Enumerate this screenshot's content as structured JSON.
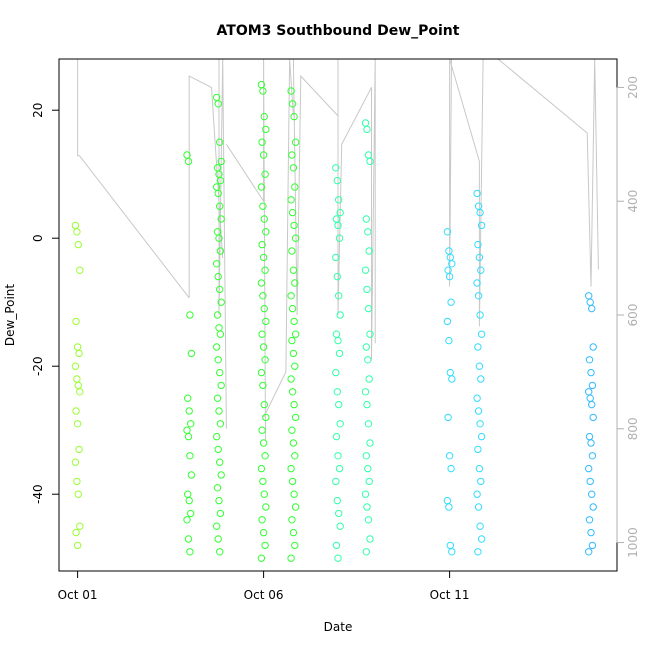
{
  "chart_data": {
    "type": "scatter",
    "title": "ATOM3 Southbound Dew_Point",
    "xlabel": "Date",
    "ylabel": "Dew_Point",
    "x_ticks": [
      "Oct 01",
      "Oct 06",
      "Oct 11"
    ],
    "x_tick_days": [
      1,
      6,
      11
    ],
    "xlim": [
      0.5,
      15.5
    ],
    "ylim": [
      -52,
      28
    ],
    "y_ticks": [
      -40,
      -20,
      0,
      20
    ],
    "y2_ticks": [
      200,
      400,
      600,
      800,
      1000
    ],
    "y2lim": [
      1050,
      150
    ],
    "grid": false,
    "legend": "none",
    "colors": {
      "early": "#99ff33",
      "mid": "#33ff33",
      "late": "#33ffcc",
      "latest": "#33ccff",
      "pressure_line": "#c8c8c8",
      "right_axis": "#b0b0b0"
    },
    "groups": [
      {
        "day": 1.0,
        "color": "#99ff33",
        "y": [
          2,
          1,
          -1,
          -5,
          -13,
          -17,
          -18,
          -20,
          -22,
          -23,
          -24,
          -27,
          -29,
          -33,
          -35,
          -38,
          -40,
          -45,
          -46,
          -48
        ]
      },
      {
        "day": 4.0,
        "color": "#33ff33",
        "y": [
          13,
          12,
          -12,
          -18,
          -25,
          -27,
          -29,
          -30,
          -31,
          -34,
          -37,
          -40,
          -41,
          -43,
          -44,
          -47,
          -49
        ]
      },
      {
        "day": 4.8,
        "color": "#33ff33",
        "y": [
          22,
          21,
          15,
          12,
          11,
          10,
          9,
          8,
          7,
          5,
          3,
          1,
          0,
          -2,
          -4,
          -6,
          -8,
          -10,
          -12,
          -14,
          -15,
          -17,
          -19,
          -21,
          -23,
          -25,
          -27,
          -29,
          -31,
          -33,
          -35,
          -37,
          -39,
          -41,
          -43,
          -45,
          -47,
          -49
        ]
      },
      {
        "day": 6.0,
        "color": "#33ff33",
        "y": [
          24,
          23,
          19,
          17,
          15,
          13,
          10,
          8,
          5,
          3,
          1,
          -1,
          -3,
          -5,
          -7,
          -9,
          -11,
          -13,
          -15,
          -17,
          -19,
          -21,
          -23,
          -26,
          -28,
          -30,
          -32,
          -34,
          -36,
          -38,
          -40,
          -42,
          -44,
          -46,
          -48,
          -50
        ]
      },
      {
        "day": 6.8,
        "color": "#33ff33",
        "y": [
          23,
          21,
          19,
          15,
          13,
          11,
          8,
          6,
          4,
          2,
          0,
          -2,
          -5,
          -7,
          -9,
          -11,
          -13,
          -15,
          -16,
          -18,
          -20,
          -22,
          -24,
          -26,
          -28,
          -30,
          -32,
          -34,
          -36,
          -38,
          -40,
          -42,
          -44,
          -46,
          -48,
          -50
        ]
      },
      {
        "day": 8.0,
        "color": "#33ffaa",
        "y": [
          11,
          9,
          6,
          4,
          3,
          2,
          0,
          -3,
          -6,
          -9,
          -12,
          -15,
          -16,
          -18,
          -21,
          -24,
          -26,
          -29,
          -31,
          -34,
          -36,
          -38,
          -41,
          -43,
          -45,
          -48,
          -50
        ]
      },
      {
        "day": 8.8,
        "color": "#33ffaa",
        "y": [
          18,
          17,
          13,
          12,
          3,
          1,
          -2,
          -5,
          -8,
          -11,
          -15,
          -17,
          -19,
          -22,
          -24,
          -26,
          -29,
          -32,
          -34,
          -36,
          -38,
          -40,
          -42,
          -44,
          -47,
          -49
        ]
      },
      {
        "day": 11.0,
        "color": "#33ddff",
        "y": [
          1,
          -2,
          -3,
          -4,
          -5,
          -6,
          -10,
          -13,
          -16,
          -21,
          -22,
          -28,
          -34,
          -36,
          -41,
          -42,
          -48,
          -49
        ]
      },
      {
        "day": 11.8,
        "color": "#33ddff",
        "y": [
          7,
          5,
          4,
          2,
          -1,
          -3,
          -5,
          -7,
          -9,
          -12,
          -15,
          -17,
          -20,
          -22,
          -25,
          -27,
          -29,
          -31,
          -33,
          -36,
          -38,
          -40,
          -42,
          -45,
          -47,
          -49
        ]
      },
      {
        "day": 14.8,
        "color": "#33bbff",
        "y": [
          -9,
          -10,
          -11,
          -17,
          -19,
          -21,
          -23,
          -24,
          -25,
          -26,
          -28,
          -31,
          -32,
          -34,
          -36,
          -38,
          -40,
          -42,
          -44,
          -46,
          -48,
          -49
        ]
      }
    ],
    "pressure_segments": [
      [
        [
          1.0,
          150
        ],
        [
          1.0,
          320
        ],
        [
          1.05,
          320
        ],
        [
          4.0,
          570
        ]
      ],
      [
        [
          4.0,
          570
        ],
        [
          4.0,
          180
        ],
        [
          4.6,
          200
        ],
        [
          4.9,
          500
        ]
      ],
      [
        [
          4.8,
          150
        ],
        [
          4.8,
          600
        ],
        [
          4.9,
          150
        ],
        [
          5.0,
          800
        ]
      ],
      [
        [
          5.0,
          300
        ],
        [
          6.0,
          400
        ],
        [
          6.0,
          150
        ],
        [
          6.05,
          820
        ]
      ],
      [
        [
          6.0,
          780
        ],
        [
          6.6,
          700
        ],
        [
          6.7,
          150
        ],
        [
          6.8,
          250
        ]
      ],
      [
        [
          6.8,
          150
        ],
        [
          6.9,
          600
        ],
        [
          7.0,
          180
        ],
        [
          8.0,
          250
        ]
      ],
      [
        [
          8.0,
          150
        ],
        [
          8.0,
          600
        ],
        [
          8.1,
          300
        ],
        [
          8.9,
          200
        ]
      ],
      [
        [
          8.9,
          200
        ],
        [
          8.9,
          680
        ],
        [
          9.0,
          150
        ],
        [
          9.0,
          650
        ]
      ],
      [
        [
          9.0,
          150
        ],
        [
          11.0,
          150
        ],
        [
          11.0,
          550
        ],
        [
          11.05,
          150
        ]
      ],
      [
        [
          11.0,
          150
        ],
        [
          11.8,
          330
        ],
        [
          11.8,
          620
        ],
        [
          11.9,
          150
        ]
      ],
      [
        [
          12.3,
          150
        ],
        [
          14.7,
          280
        ],
        [
          14.8,
          550
        ],
        [
          14.9,
          150
        ],
        [
          15.0,
          520
        ]
      ]
    ]
  }
}
